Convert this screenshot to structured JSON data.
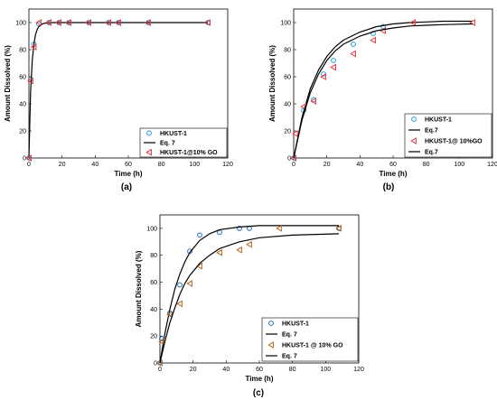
{
  "chart_data": [
    {
      "type": "scatter",
      "panel_label": "(a)",
      "xlabel": "Time (h)",
      "ylabel": "Amount Dissolved (%)",
      "xlim": [
        0,
        120
      ],
      "ylim": [
        0,
        110
      ],
      "xticks": [
        "0",
        "20",
        "40",
        "60",
        "80",
        "100",
        "120"
      ],
      "yticks": [
        "0",
        "20",
        "40",
        "60",
        "80",
        "100"
      ],
      "legend_position": "bottom-right",
      "series": [
        {
          "name": "HKUST-1",
          "kind": "marker-circle",
          "color": "#1f9bd7",
          "x": [
            0,
            1,
            3,
            6,
            12,
            18,
            24,
            36,
            48,
            54,
            72,
            108
          ],
          "y": [
            0,
            58,
            84,
            99,
            100,
            100,
            100,
            100,
            100,
            100,
            100,
            100
          ]
        },
        {
          "name": "Eq. 7",
          "kind": "line",
          "color": "#000000",
          "x": [
            0,
            1,
            2,
            3,
            4,
            5,
            6,
            8,
            10,
            12,
            15,
            20,
            30,
            40,
            60,
            80,
            108
          ],
          "y": [
            0,
            48,
            72,
            84,
            91,
            95,
            97,
            99,
            99.6,
            99.9,
            100,
            100,
            100,
            100,
            100,
            100,
            100
          ]
        },
        {
          "name": "HKUST-1@10% GO",
          "kind": "marker-triangle-left",
          "color": "#e8303a",
          "x": [
            0,
            1,
            3,
            6,
            12,
            18,
            24,
            36,
            48,
            54,
            72,
            108
          ],
          "y": [
            0,
            57,
            82,
            100,
            100,
            100,
            100,
            100,
            100,
            100,
            100,
            100
          ]
        }
      ]
    },
    {
      "type": "scatter",
      "panel_label": "(b)",
      "xlabel": "Time (h)",
      "ylabel": "Amount Dissolved (%)",
      "xlim": [
        0,
        120
      ],
      "ylim": [
        0,
        110
      ],
      "xticks": [
        "0",
        "20",
        "40",
        "60",
        "80",
        "100",
        "120"
      ],
      "yticks": [
        "0",
        "20",
        "40",
        "60",
        "80",
        "100"
      ],
      "legend_position": "bottom-right",
      "series": [
        {
          "name": "HKUST-1",
          "kind": "marker-circle",
          "color": "#1f9bd7",
          "x": [
            0,
            6,
            12,
            18,
            24,
            36,
            48,
            54
          ],
          "y": [
            0,
            35,
            43,
            62,
            72,
            84,
            92,
            97
          ]
        },
        {
          "name": "Eq.7",
          "kind": "line",
          "color": "#000000",
          "x": [
            0,
            5,
            10,
            15,
            20,
            25,
            30,
            40,
            50,
            60,
            70,
            80,
            90,
            100,
            108
          ],
          "y": [
            0,
            30,
            51,
            65,
            75,
            82,
            87,
            93,
            97,
            99,
            100,
            100.5,
            101,
            101,
            101
          ]
        },
        {
          "name": "HKUST-1@ 10%GO",
          "kind": "marker-triangle-left",
          "color": "#e8303a",
          "x": [
            0,
            1,
            6,
            12,
            18,
            24,
            36,
            48,
            54,
            72,
            108
          ],
          "y": [
            0,
            18,
            38,
            42,
            60,
            67,
            77,
            87,
            94,
            100,
            100
          ]
        },
        {
          "name": "Eq.7",
          "kind": "line",
          "color": "#000000",
          "x": [
            0,
            5,
            10,
            15,
            20,
            25,
            30,
            40,
            50,
            60,
            70,
            80,
            90,
            100,
            108
          ],
          "y": [
            0,
            28,
            48,
            62,
            72,
            79,
            84,
            90,
            94,
            96,
            97.5,
            98,
            98.5,
            98.8,
            99
          ]
        }
      ]
    },
    {
      "type": "scatter",
      "panel_label": "(c)",
      "xlabel": "Time (h)",
      "ylabel": "Amount Dissolved (%)",
      "xlim": [
        0,
        120
      ],
      "ylim": [
        0,
        110
      ],
      "xticks": [
        "0",
        "20",
        "40",
        "60",
        "80",
        "100",
        "120"
      ],
      "yticks": [
        "0",
        "20",
        "40",
        "60",
        "80",
        "100"
      ],
      "legend_position": "bottom-left",
      "series": [
        {
          "name": "HKUST-1",
          "kind": "marker-circle",
          "color": "#1f6fc0",
          "x": [
            0,
            1,
            6,
            12,
            18,
            24,
            36,
            48,
            54,
            108
          ],
          "y": [
            0,
            18,
            37,
            58,
            83,
            95,
            97,
            100,
            100,
            100
          ]
        },
        {
          "name": "Eq. 7",
          "kind": "line",
          "color": "#000000",
          "x": [
            0,
            3,
            6,
            9,
            12,
            15,
            18,
            24,
            30,
            36,
            48,
            60,
            80,
            108
          ],
          "y": [
            0,
            22,
            40,
            55,
            66,
            75,
            82,
            91,
            96,
            99,
            101,
            102,
            102,
            102
          ]
        },
        {
          "name": "HKUST-1 @ 10% GO",
          "kind": "marker-triangle-left",
          "color": "#b5651d",
          "x": [
            0,
            1,
            6,
            12,
            18,
            24,
            36,
            48,
            54,
            72,
            108
          ],
          "y": [
            0,
            16,
            36,
            44,
            59,
            72,
            82,
            84,
            88,
            100,
            100
          ]
        },
        {
          "name": "Eq. 7",
          "kind": "line",
          "color": "#000000",
          "x": [
            0,
            3,
            6,
            9,
            12,
            15,
            18,
            24,
            30,
            36,
            48,
            60,
            80,
            108
          ],
          "y": [
            0,
            16,
            30,
            41,
            51,
            59,
            65,
            74,
            80,
            85,
            90,
            93,
            95,
            96
          ]
        }
      ]
    }
  ]
}
